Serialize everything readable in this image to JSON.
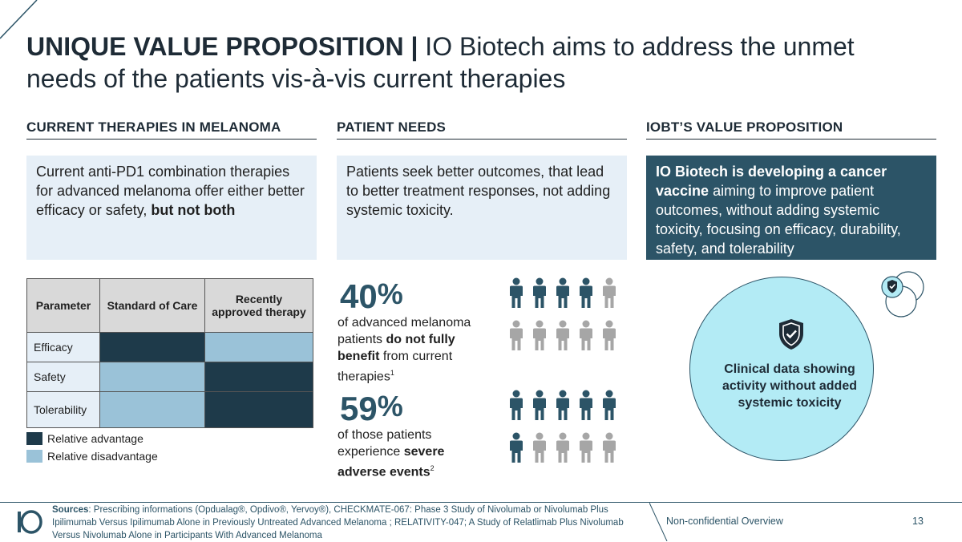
{
  "title": {
    "bold": "UNIQUE VALUE PROPOSITION |",
    "rest": " IO Biotech aims to address the unmet needs of the patients vis-à-vis current therapies"
  },
  "columns": {
    "current": {
      "heading": "CURRENT THERAPIES IN MELANOMA",
      "text_1": "Current anti-PD1 combination therapies for advanced melanoma offer either better efficacy or safety, ",
      "text_bold": "but not both"
    },
    "needs": {
      "heading": "PATIENT NEEDS",
      "text": "Patients seek better outcomes, that lead to better treatment responses, not adding systemic toxicity."
    },
    "value": {
      "heading": "IOBT’S VALUE PROPOSITION",
      "text_bold": "IO Biotech is developing a cancer vaccine",
      "text_rest": " aiming to improve patient outcomes, without adding systemic toxicity, focusing on efficacy, durability, safety, and tolerability"
    }
  },
  "table": {
    "headers": [
      "Parameter",
      "Standard of Care",
      "Recently approved therapy"
    ],
    "rows": [
      {
        "label": "Efficacy",
        "soc": "advantage",
        "recent": "disadvantage"
      },
      {
        "label": "Safety",
        "soc": "disadvantage",
        "recent": "advantage"
      },
      {
        "label": "Tolerability",
        "soc": "disadvantage",
        "recent": "advantage"
      }
    ]
  },
  "legend": {
    "advantage": "Relative advantage",
    "disadvantage": "Relative disadvantage",
    "colors": {
      "advantage": "#1e3a4a",
      "disadvantage": "#9ac2d8"
    }
  },
  "stats": [
    {
      "number": "40",
      "unit": "%",
      "text_1": "of advanced melanoma patients ",
      "text_bold": "do not fully benefit",
      "text_2": " from current therapies",
      "footnote": "1",
      "icons_filled": 4,
      "icons_total": 10
    },
    {
      "number": "59",
      "unit": "%",
      "text_1": "of those patients experience ",
      "text_bold": "severe adverse events",
      "text_2": "",
      "footnote": "2",
      "icons_filled": 6,
      "icons_total": 10
    }
  ],
  "circle": {
    "icon": "shield-check-icon",
    "text": "Clinical data showing activity without added systemic toxicity"
  },
  "footer": {
    "sources_label": "Sources",
    "sources_text": ": Prescribing informations (Opdualag®, Opdivo®, Yervoy®), CHECKMATE-067: Phase 3 Study of Nivolumab or Nivolumab Plus Ipilimumab Versus Ipilimumab Alone in Previously Untreated Advanced Melanoma ; RELATIVITY-047; A Study of Relatlimab Plus Nivolumab Versus Nivolumab Alone in Participants With Advanced Melanoma",
    "label": "Non-confidential Overview",
    "page": "13",
    "logo": "IO"
  },
  "colors": {
    "primary": "#2c5467",
    "dark": "#1e3a4a",
    "light_bg": "#e6eff7",
    "circle_fill": "#b3ebf5",
    "person_filled": "#2c5467",
    "person_empty": "#a6a6a6"
  }
}
